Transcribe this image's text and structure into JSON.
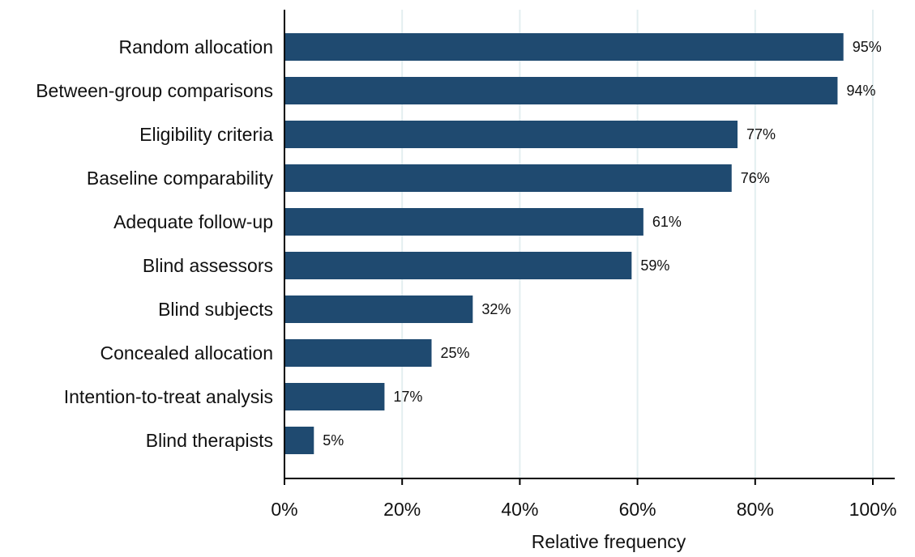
{
  "chart_data": {
    "type": "bar",
    "orientation": "horizontal",
    "categories": [
      "Random allocation",
      "Between-group comparisons",
      "Eligibility criteria",
      "Baseline comparability",
      "Adequate follow-up",
      "Blind assessors",
      "Blind subjects",
      "Concealed allocation",
      "Intention-to-treat analysis",
      "Blind therapists"
    ],
    "values": [
      95,
      94,
      77,
      76,
      61,
      59,
      32,
      25,
      17,
      5
    ],
    "value_labels": [
      "95%",
      "94%",
      "77%",
      "76%",
      "61%",
      "59%",
      "32%",
      "25%",
      "17%",
      "5%"
    ],
    "xlabel": "Relative frequency",
    "ylabel": "",
    "xlim": [
      0,
      100
    ],
    "x_ticks": [
      0,
      20,
      40,
      60,
      80,
      100
    ],
    "x_tick_labels": [
      "0%",
      "20%",
      "40%",
      "60%",
      "80%",
      "100%"
    ],
    "bar_color": "#1f4a70",
    "grid": "vertical",
    "grid_color": "#e3eef0",
    "legend": "none"
  }
}
